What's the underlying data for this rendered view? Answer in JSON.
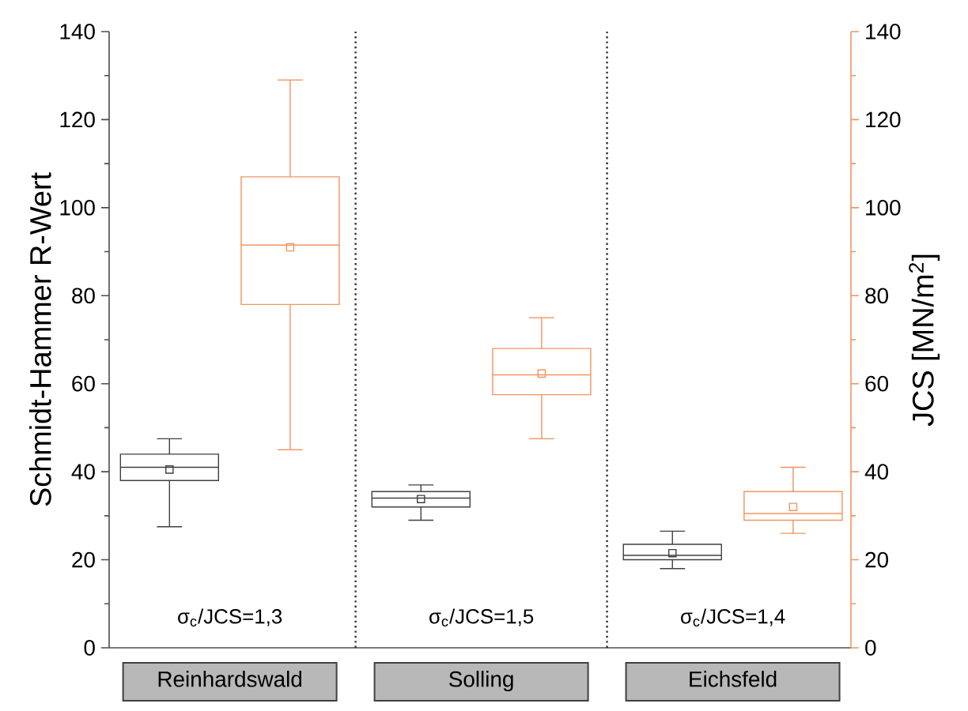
{
  "chart_data": {
    "type": "box",
    "ylabel": "Schmidt-Hammer R-Wert",
    "y2label": "JCS [MN/m$^{2}$]",
    "categories": [
      "Reinhardswald",
      "Solling",
      "Eichsfeld"
    ],
    "ylim": [
      0,
      140
    ],
    "yticks": [
      0,
      {
        "value": 10,
        "label": null
      },
      20,
      {
        "value": 30,
        "label": null
      },
      40,
      {
        "value": 50,
        "label": null
      },
      60,
      {
        "value": 70,
        "label": null
      },
      80,
      {
        "value": 90,
        "label": null
      },
      100,
      {
        "value": 110,
        "label": null
      },
      120,
      {
        "value": 130,
        "label": null
      },
      140
    ],
    "y2lim": [
      0,
      140
    ],
    "y2ticks": [
      0,
      {
        "value": 10,
        "label": null
      },
      20,
      {
        "value": 30,
        "label": null
      },
      40,
      {
        "value": 50,
        "label": null
      },
      60,
      {
        "value": 70,
        "label": null
      },
      80,
      {
        "value": 90,
        "label": null
      },
      100,
      {
        "value": 110,
        "label": null
      },
      120,
      {
        "value": 130,
        "label": null
      },
      140
    ],
    "marker": "square",
    "series": [
      {
        "color": "#404040",
        "boxes": [
          {
            "low": 27.5,
            "q1": 38,
            "median": 41,
            "q3": 44,
            "high": 47.5,
            "mean": 40.5
          },
          {
            "low": 29,
            "q1": 32,
            "median": 34,
            "q3": 35.5,
            "high": 37,
            "mean": 33.8
          },
          {
            "low": 18,
            "q1": 20,
            "median": 21,
            "q3": 23.5,
            "high": 26.5,
            "mean": 21.5
          }
        ]
      },
      {
        "color": "#f0955f",
        "axis": "y2",
        "boxes": [
          {
            "low": 45,
            "q1": 78,
            "median": 91.5,
            "q3": 107,
            "high": 129,
            "mean": 91
          },
          {
            "low": 47.5,
            "q1": 57.5,
            "median": 62,
            "q3": 68,
            "high": 75,
            "mean": 62.3
          },
          {
            "low": 26,
            "q1": 29,
            "median": 30.5,
            "q3": 35.5,
            "high": 41,
            "mean": 32
          }
        ]
      }
    ],
    "annotations": [
      "σ$_{c}$/JCS=1,3",
      "σ$_{c}$/JCS=1,5",
      "σ$_{c}$/JCS=1,4"
    ],
    "grid": false
  }
}
